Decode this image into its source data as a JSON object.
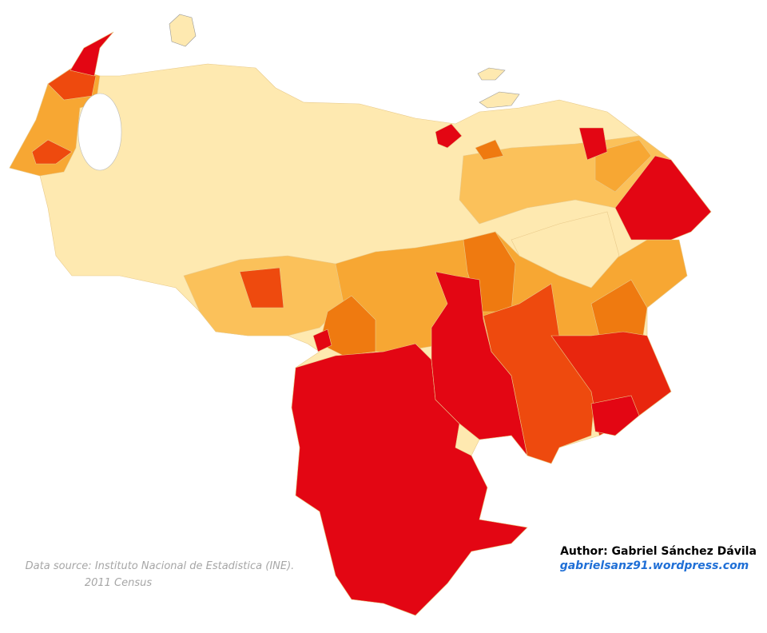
{
  "credits": {
    "source": "Data source: Instituto Nacional de Estadistica (INE).",
    "census": "2011 Census"
  },
  "author": {
    "name": "Author: Gabriel Sánchez Dávila",
    "website": "gabrielsanz91.wordpress.com"
  }
}
